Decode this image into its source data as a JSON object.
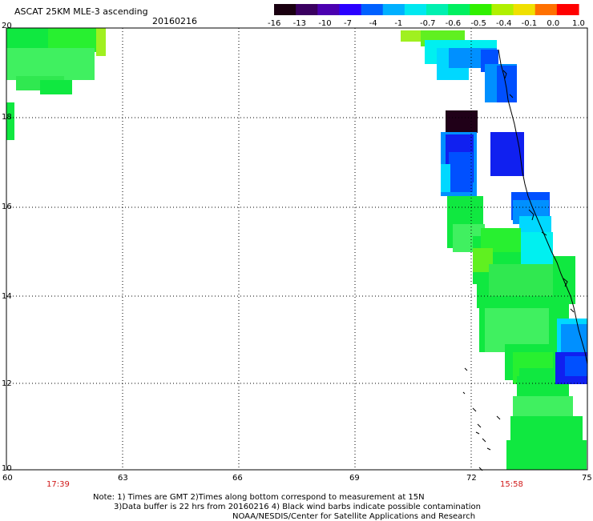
{
  "header": {
    "title": "ASCAT 25KM MLE-3 ascending",
    "date": "20160216"
  },
  "colorbar": {
    "labels": [
      "-16",
      "-13",
      "-10",
      "-7",
      "-4",
      "-1",
      "-0.7",
      "-0.6",
      "-0.5",
      "-0.4",
      "-0.1",
      "0.0",
      "1.0"
    ],
    "colors": [
      "#1a0010",
      "#3a0060",
      "#4b00b0",
      "#2a00ff",
      "#0060ff",
      "#00b0ff",
      "#00e8f0",
      "#00f0b0",
      "#00f060",
      "#30f000",
      "#b0f000",
      "#f0e000",
      "#ff7000",
      "#ff0000"
    ]
  },
  "map": {
    "lat_labels": [
      "20",
      "18",
      "16",
      "14",
      "12",
      "10"
    ],
    "lon_labels": [
      "60",
      "63",
      "66",
      "69",
      "72",
      "75"
    ],
    "grid": true
  },
  "times": {
    "left": "17:39",
    "right": "15:58"
  },
  "notes": {
    "line1": "Note: 1) Times are GMT 2)Times along bottom correspond to measurement at 15N",
    "line2": "3)Data buffer is 22 hrs from 20160216 4) Black wind barbs indicate possible contamination",
    "line3": "NOAA/NESDIS/Center for Satellite Applications and Research"
  }
}
